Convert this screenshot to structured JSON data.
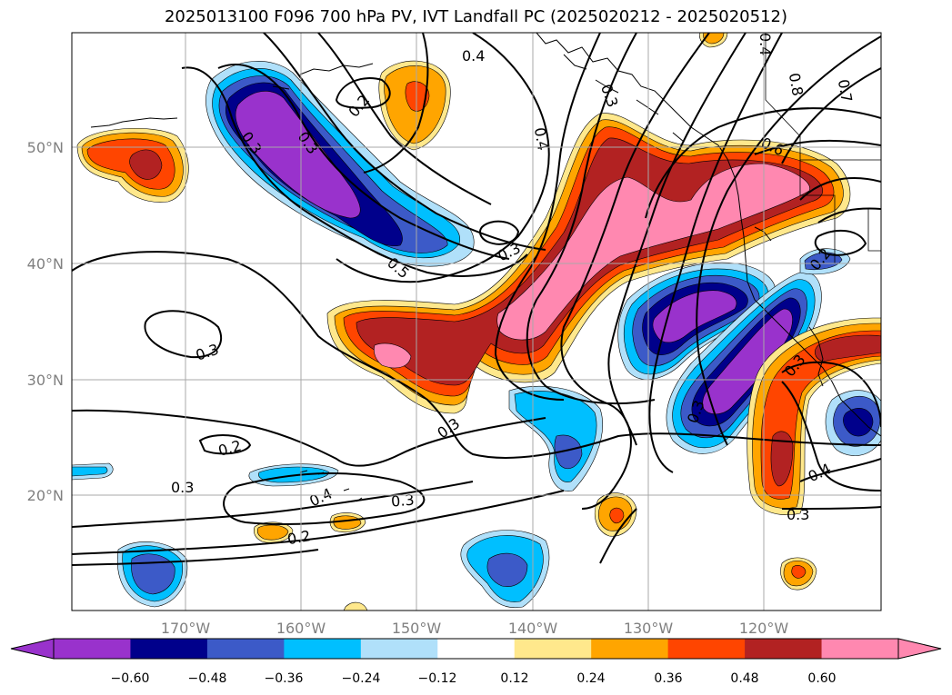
{
  "title": "2025013100 F096 700 hPa PV, IVT Landfall PC (2025020212 - 2025020512)",
  "map": {
    "lon_ticks": [
      "170°W",
      "160°W",
      "150°W",
      "140°W",
      "130°W",
      "120°W"
    ],
    "lat_ticks": [
      "50°N",
      "40°N",
      "30°N",
      "20°N"
    ],
    "contour_labels": [
      "0.4",
      "0.2",
      "0.3",
      "0.5",
      "0.3",
      "0.4",
      "0.8",
      "0.7",
      "0.6",
      "0.3",
      "0.2",
      "0.3",
      "0.3",
      "0.3",
      "0.4",
      "0.3",
      "0.2",
      "0.3",
      "0.4",
      "0.2",
      "0.3",
      "0.3",
      "0.4",
      "0.3"
    ]
  },
  "colorbar": {
    "labels": [
      "−0.60",
      "−0.48",
      "−0.36",
      "−0.24",
      "−0.12",
      "0.12",
      "0.24",
      "0.36",
      "0.48",
      "0.60"
    ],
    "colors": [
      "#9932cc",
      "#00008b",
      "#3c5ac8",
      "#00bfff",
      "#b0e0fa",
      "#ffffff",
      "#ffe88c",
      "#ffa500",
      "#ff4500",
      "#b22222",
      "#ff88b0"
    ]
  }
}
